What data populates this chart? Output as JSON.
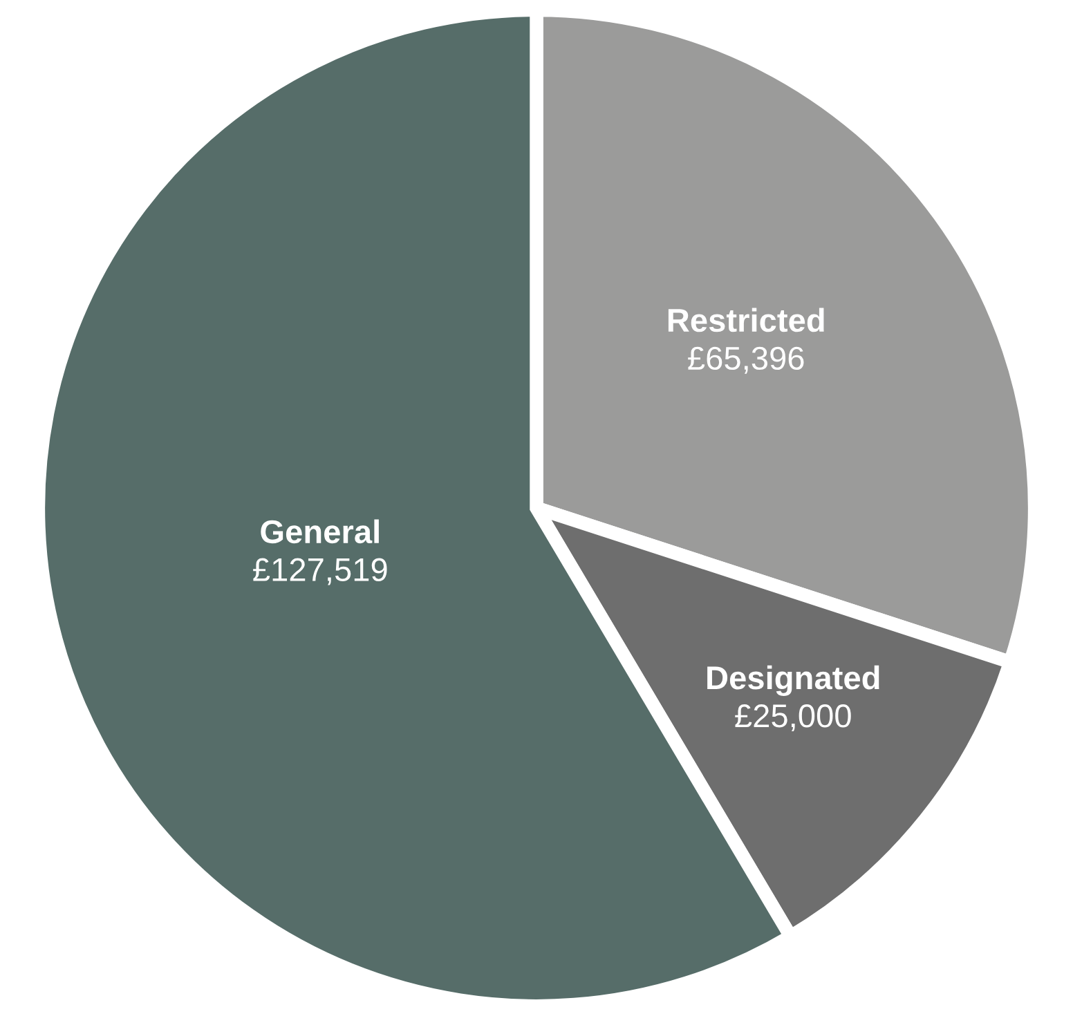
{
  "chart_data": {
    "type": "pie",
    "categories": [
      "Restricted",
      "Designated",
      "General"
    ],
    "values": [
      65396,
      25000,
      127519
    ],
    "value_labels": [
      "£65,396",
      "£25,000",
      "£127,519"
    ],
    "colors": [
      "#9b9b9a",
      "#6e6e6e",
      "#566d69"
    ],
    "legend": false
  }
}
